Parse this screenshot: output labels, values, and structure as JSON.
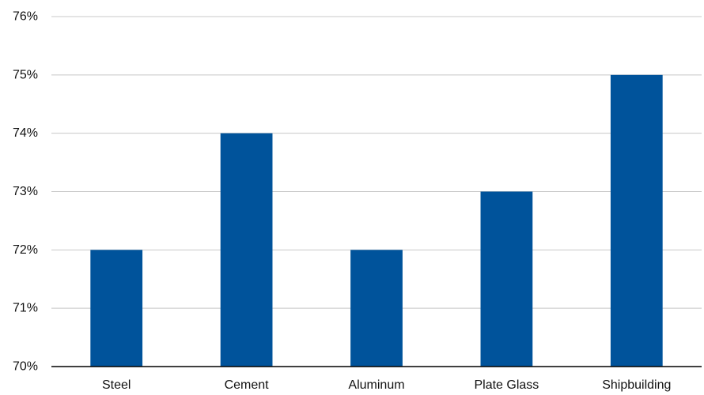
{
  "chart_data": {
    "type": "bar",
    "title": "",
    "xlabel": "",
    "ylabel": "",
    "categories": [
      "Steel",
      "Cement",
      "Aluminum",
      "Plate Glass",
      "Shipbuilding"
    ],
    "values": [
      72,
      74,
      72,
      73,
      75
    ],
    "ylim": [
      70,
      76
    ],
    "yticks": [
      70,
      71,
      72,
      73,
      74,
      75,
      76
    ],
    "ytick_labels": [
      "70%",
      "71%",
      "72%",
      "73%",
      "74%",
      "75%",
      "76%"
    ],
    "grid": true,
    "legend": "none",
    "bar_color": "#00539b"
  }
}
